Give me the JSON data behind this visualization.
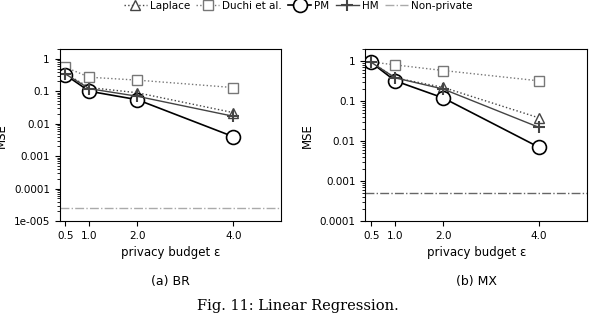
{
  "x": [
    0.5,
    1,
    2,
    4
  ],
  "BR": {
    "Laplace": [
      0.35,
      0.13,
      0.09,
      0.022
    ],
    "Duchi": [
      0.55,
      0.27,
      0.22,
      0.13
    ],
    "PM": [
      0.32,
      0.1,
      0.055,
      0.004
    ],
    "HM": [
      0.34,
      0.12,
      0.07,
      0.017
    ],
    "NonPrivate": 2.5e-05
  },
  "MX": {
    "Laplace": [
      0.95,
      0.38,
      0.22,
      0.038
    ],
    "Duchi": [
      0.95,
      0.8,
      0.58,
      0.32
    ],
    "PM": [
      0.92,
      0.32,
      0.12,
      0.007
    ],
    "HM": [
      0.93,
      0.38,
      0.2,
      0.022
    ],
    "NonPrivate": 0.0005
  },
  "xlabel": "privacy budget ε",
  "ylabel": "MSE",
  "title_BR": "(a) BR",
  "title_MX": "(b) MX",
  "fig_title": "Fig. 11: Linear Regression.",
  "legend_labels": [
    "Laplace",
    "Duchi et al.",
    "PM",
    "HM",
    "Non-private"
  ],
  "BR_ylim": [
    1e-05,
    2.0
  ],
  "MX_ylim": [
    0.0001,
    2.0
  ],
  "xlim": [
    0.38,
    5.0
  ]
}
